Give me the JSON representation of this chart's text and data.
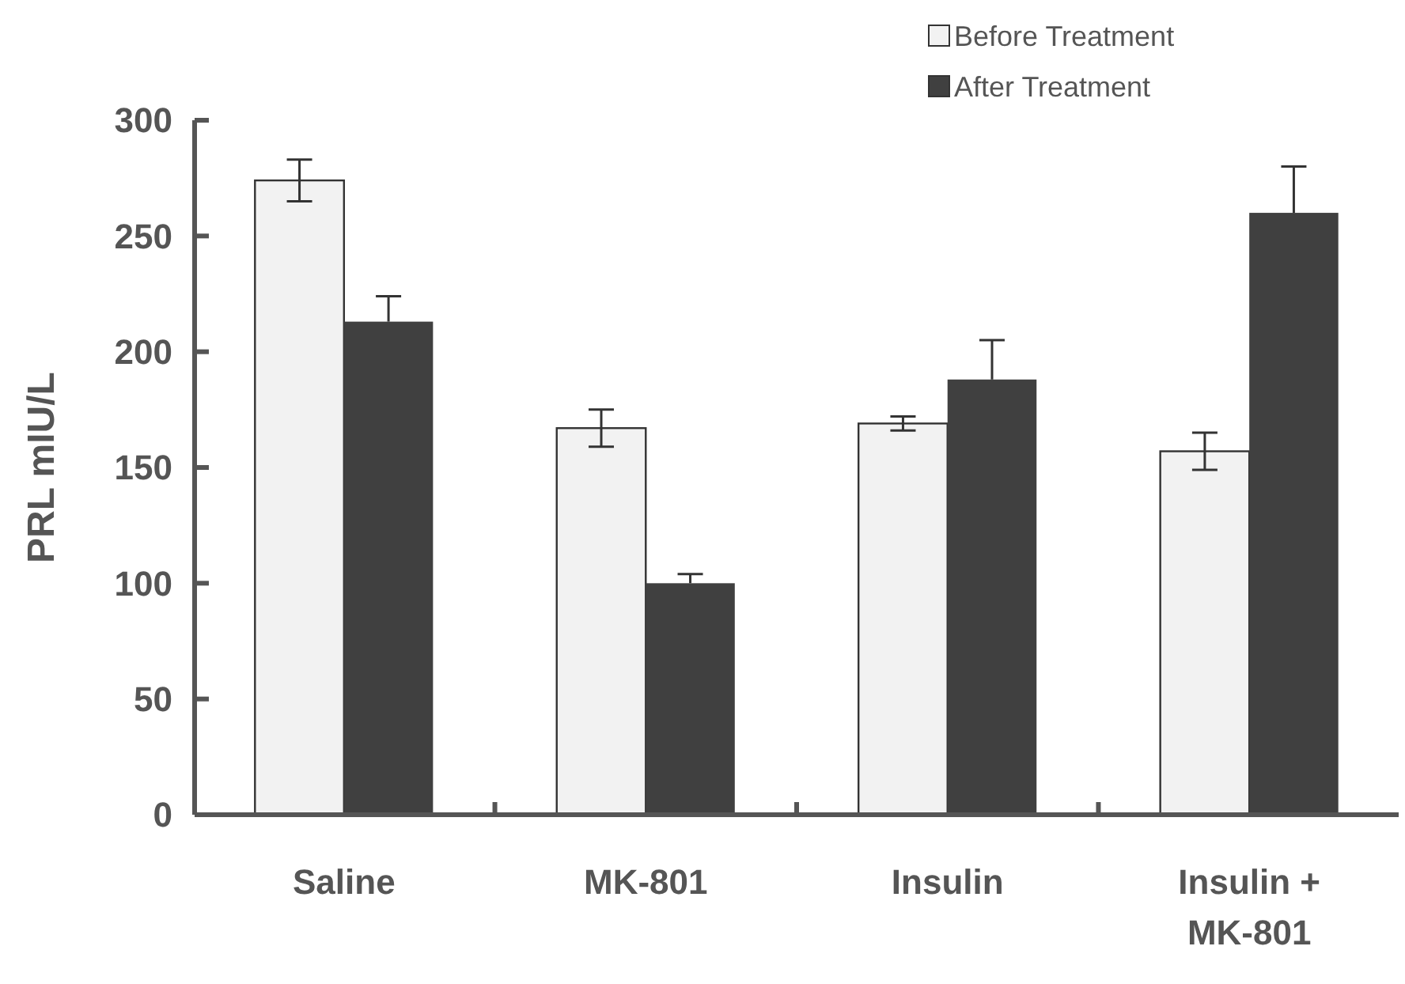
{
  "chart_data": {
    "type": "bar",
    "ylabel": "PRL mIU/L",
    "categories": [
      "Saline",
      "MK-801",
      "Insulin",
      "Insulin + MK-801"
    ],
    "series": [
      {
        "name": "Before Treatment",
        "color": "#f2f2f2",
        "values": [
          274,
          167,
          169,
          157
        ],
        "errors": [
          9,
          8,
          3,
          8
        ]
      },
      {
        "name": "After Treatment",
        "color": "#404040",
        "values": [
          213,
          100,
          188,
          260
        ],
        "errors": [
          11,
          4,
          17,
          20
        ]
      }
    ],
    "ylim": [
      0,
      300
    ],
    "yticks": [
      0,
      50,
      100,
      150,
      200,
      250,
      300
    ],
    "grid": false,
    "legend": "top right"
  }
}
